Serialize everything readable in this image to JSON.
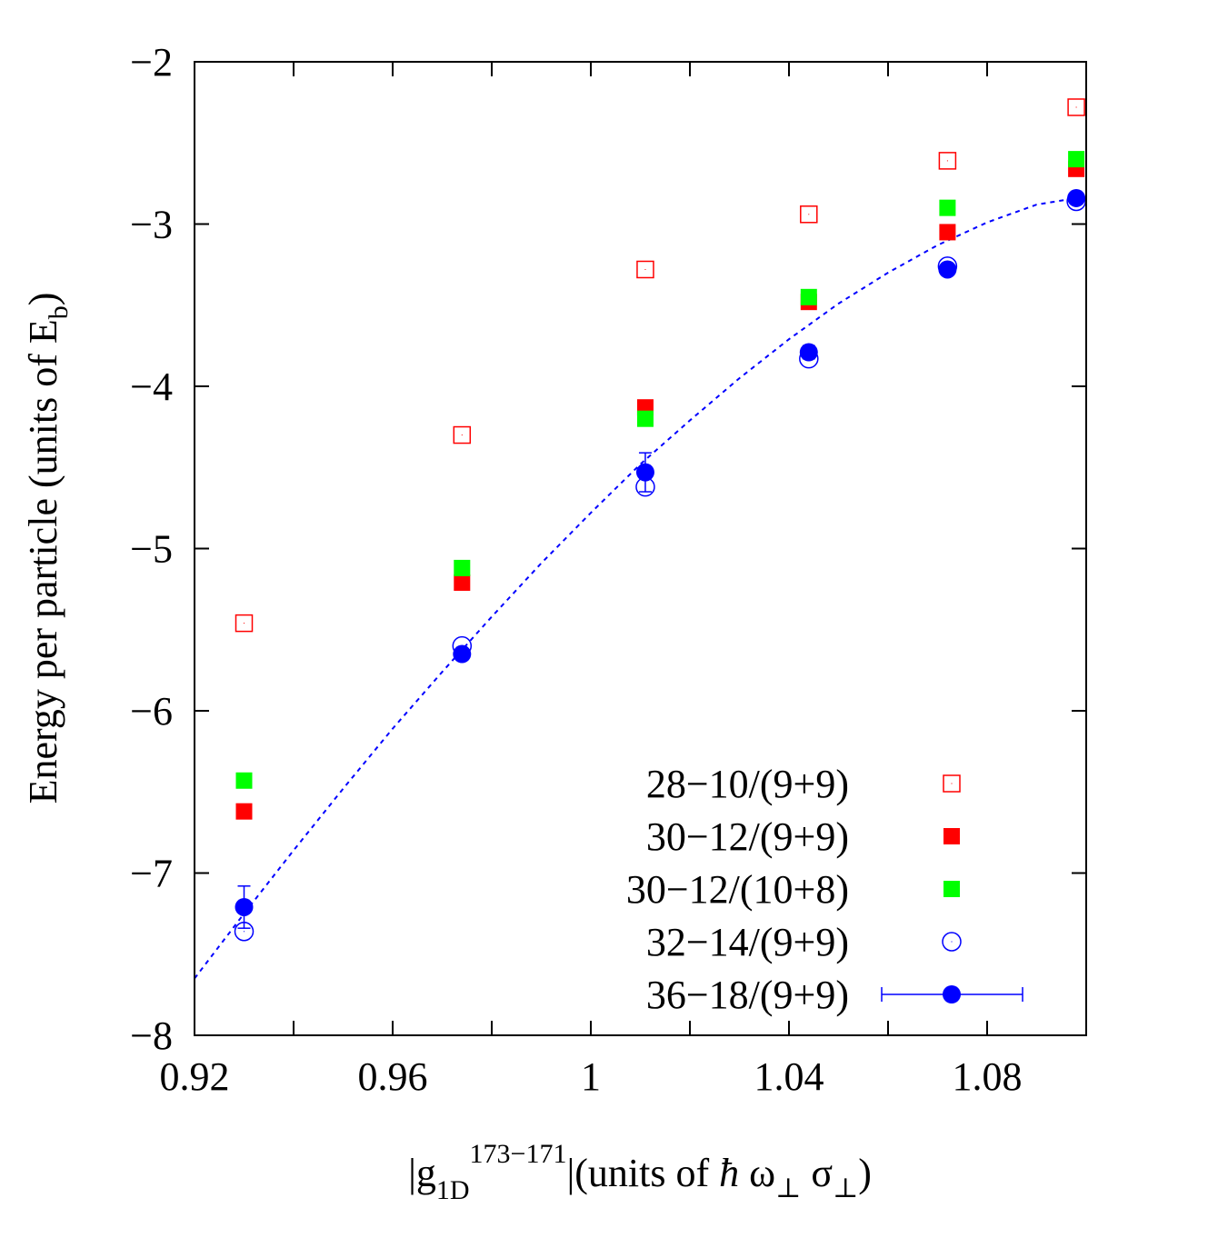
{
  "chart_data": {
    "type": "scatter",
    "title": "",
    "xlabel": {
      "prefix": "|g",
      "sub": "1D",
      "sup": "173−171",
      "suffix": "|(units of ",
      "hbar": "ħ",
      "omega": " ω",
      "sigma": " σ",
      "perp": "⊥",
      "close": ")"
    },
    "ylabel": {
      "main": "Energy per particle (units of E",
      "sub": "b",
      "close": ")"
    },
    "xlim": [
      0.92,
      1.1
    ],
    "ylim": [
      -8,
      -2
    ],
    "xticks": [
      0.92,
      0.96,
      1,
      1.04,
      1.08
    ],
    "xtick_labels": [
      "0.92",
      "0.96",
      "1",
      "1.04",
      "1.08"
    ],
    "yticks": [
      -8,
      -7,
      -6,
      -5,
      -4,
      -3,
      -2
    ],
    "ytick_labels": [
      "−8",
      "−7",
      "−6",
      "−5",
      "−4",
      "−3",
      "−2"
    ],
    "legend_position": "bottom-right",
    "grid": false,
    "series": [
      {
        "name": "28−10/(9+9)",
        "marker": "open-square",
        "color": "#ff0000",
        "x": [
          0.93,
          0.974,
          1.011,
          1.044,
          1.072,
          1.098
        ],
        "y": [
          -5.46,
          -4.3,
          -3.28,
          -2.94,
          -2.61,
          -2.28
        ]
      },
      {
        "name": "30−12/(9+9)",
        "marker": "filled-square",
        "color": "#ff0000",
        "x": [
          0.93,
          0.974,
          1.011,
          1.044,
          1.072,
          1.098
        ],
        "y": [
          -6.62,
          -5.21,
          -4.13,
          -3.48,
          -3.05,
          -2.66
        ]
      },
      {
        "name": "30−12/(10+8)",
        "marker": "filled-square",
        "color": "#00ff00",
        "x": [
          0.93,
          0.974,
          1.011,
          1.044,
          1.072,
          1.098
        ],
        "y": [
          -6.43,
          -5.12,
          -4.2,
          -3.45,
          -2.9,
          -2.6
        ]
      },
      {
        "name": "32−14/(9+9)",
        "marker": "open-circle",
        "color": "#0000ff",
        "x": [
          0.93,
          0.974,
          1.011,
          1.044,
          1.072,
          1.098
        ],
        "y": [
          -7.36,
          -5.6,
          -4.62,
          -3.83,
          -3.26,
          -2.86
        ]
      },
      {
        "name": "36−18/(9+9)",
        "marker": "filled-circle-errorbar",
        "color": "#0000ff",
        "x": [
          0.93,
          0.974,
          1.011,
          1.044,
          1.072,
          1.098
        ],
        "y": [
          -7.21,
          -5.65,
          -4.53,
          -3.79,
          -3.28,
          -2.84
        ],
        "yerr": [
          0.13,
          0.03,
          0.12,
          0.04,
          0.03,
          0.03
        ]
      }
    ],
    "fit_curve": {
      "style": "dashed",
      "color": "#0000ff",
      "x": [
        0.92,
        0.93,
        0.94,
        0.95,
        0.96,
        0.97,
        0.98,
        0.99,
        1.0,
        1.01,
        1.02,
        1.03,
        1.04,
        1.05,
        1.06,
        1.07,
        1.08,
        1.09,
        1.098
      ],
      "y": [
        -7.65,
        -7.25,
        -6.86,
        -6.48,
        -6.11,
        -5.76,
        -5.42,
        -5.09,
        -4.78,
        -4.48,
        -4.21,
        -3.95,
        -3.71,
        -3.49,
        -3.3,
        -3.13,
        -2.99,
        -2.88,
        -2.84
      ]
    }
  }
}
